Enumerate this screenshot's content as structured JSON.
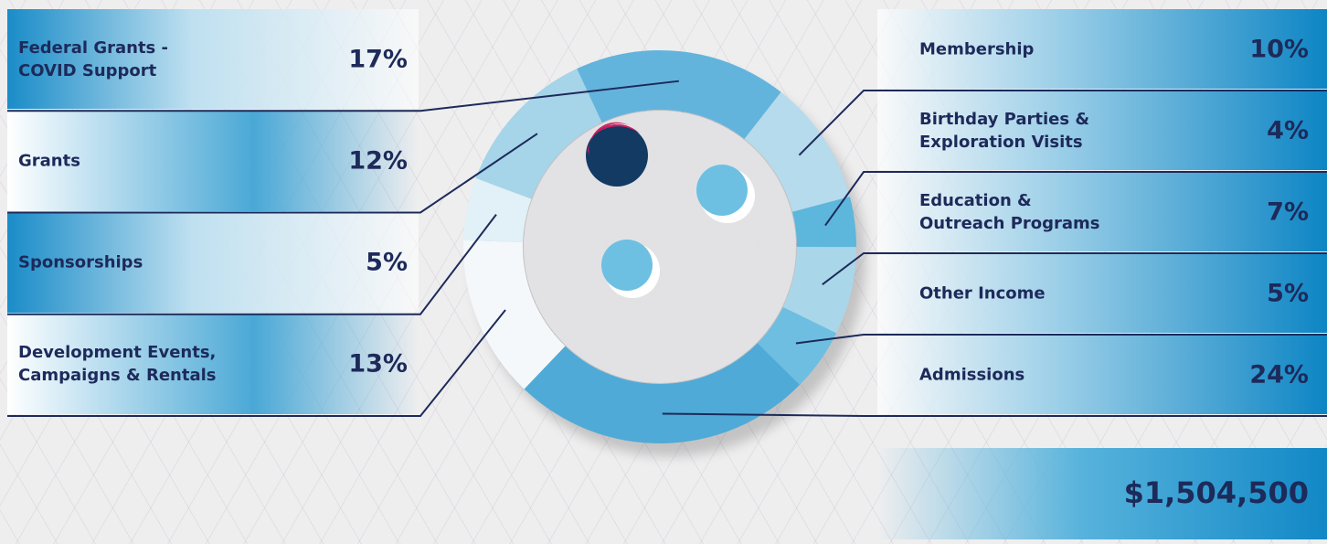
{
  "chart_data": {
    "type": "donut",
    "categories": [
      "Federal Grants -\nCOVID Support",
      "Membership",
      "Birthday Parties &\nExploration Visits",
      "Education &\nOutreach Programs",
      "Other Income",
      "Admissions",
      "Development Events,\nCampaigns & Rentals",
      "Sponsorships",
      "Grants"
    ],
    "values": [
      17,
      10,
      4,
      7,
      5,
      24,
      13,
      5,
      12
    ],
    "value_labels": [
      "17%",
      "10%",
      "4%",
      "7%",
      "5%",
      "24%",
      "13%",
      "5%",
      "12%"
    ],
    "colors": [
      "#63b4dc",
      "#b5dbec",
      "#5db6dc",
      "#aad6ea",
      "#6dbee1",
      "#4faad7",
      "#f4f8fb",
      "#e2f0f7",
      "#a6d4e9"
    ],
    "total": "$1,504,500"
  }
}
